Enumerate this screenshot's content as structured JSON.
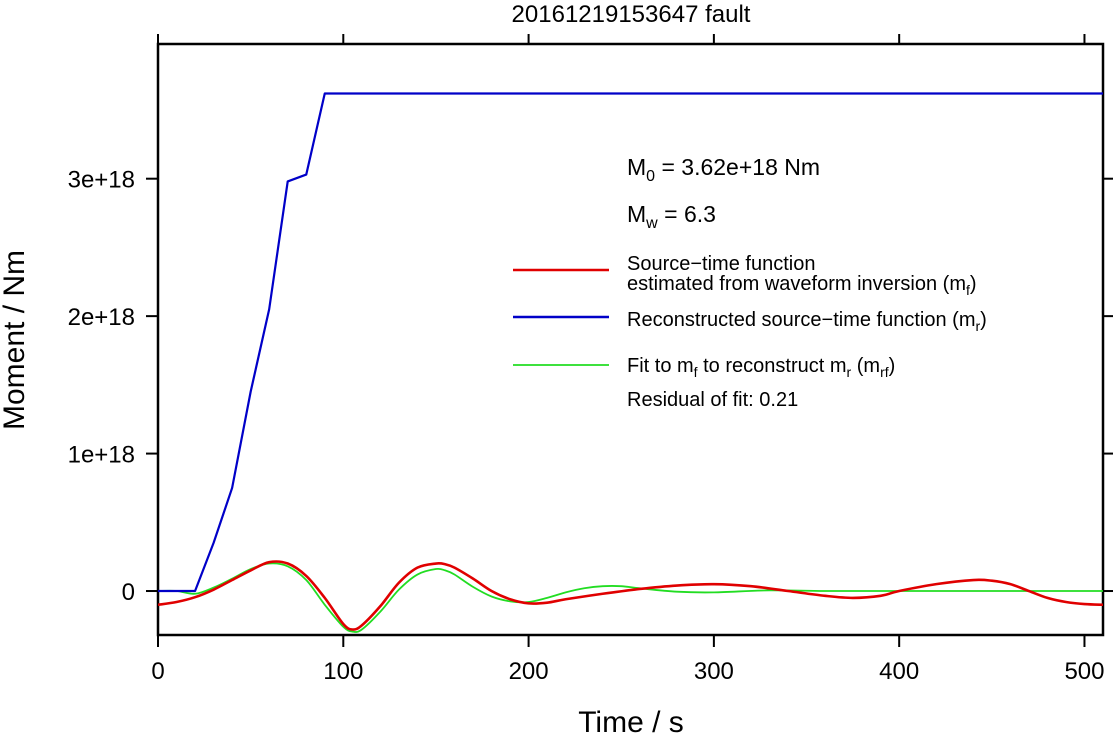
{
  "chart_data": {
    "type": "line",
    "title": "20161219153647 fault",
    "xlabel": "Time / s",
    "ylabel": "Moment / Nm",
    "xlim": [
      0,
      510
    ],
    "ylim": [
      -3.2e+17,
      3.98e+18
    ],
    "x_ticks": [
      {
        "value": 0,
        "label": "0"
      },
      {
        "value": 100,
        "label": "100"
      },
      {
        "value": 200,
        "label": "200"
      },
      {
        "value": 300,
        "label": "300"
      },
      {
        "value": 400,
        "label": "400"
      },
      {
        "value": 500,
        "label": "500"
      }
    ],
    "y_ticks": [
      {
        "value": 0,
        "label": "0"
      },
      {
        "value": 1e+18,
        "label": "1e+18"
      },
      {
        "value": 2e+18,
        "label": "2e+18"
      },
      {
        "value": 3e+18,
        "label": "3e+18"
      }
    ],
    "grid": false,
    "legend_position": "right",
    "annotations": {
      "m0": {
        "sym": "M",
        "sub": "0",
        "text": " = 3.62e+18 Nm"
      },
      "mw": {
        "sym": "M",
        "sub": "w",
        "text": " = 6.3"
      },
      "residual": "Residual of fit: 0.21"
    },
    "series": [
      {
        "name": "Source−time function estimated from waveform inversion (mf)",
        "legend": {
          "line1": "Source−time function",
          "line2_text": "estimated from waveform inversion (m",
          "line2_sub": "f",
          "line2_end": ")"
        },
        "color": "#e00000",
        "x": [
          0,
          10,
          20,
          30,
          40,
          50,
          60,
          70,
          80,
          90,
          100,
          105,
          110,
          120,
          130,
          140,
          150,
          155,
          160,
          170,
          180,
          190,
          200,
          210,
          220,
          240,
          260,
          280,
          300,
          320,
          340,
          360,
          375,
          390,
          400,
          420,
          440,
          450,
          460,
          470,
          480,
          490,
          500,
          510
        ],
        "y": [
          -1e+17,
          -8e+16,
          -4.5e+16,
          1e+16,
          8e+16,
          1.5e+17,
          2.1e+17,
          2e+17,
          1.1e+17,
          -5e+16,
          -2.4e+17,
          -2.8e+17,
          -2.5e+17,
          -1.1e+17,
          6e+16,
          1.7e+17,
          2e+17,
          1.95e+17,
          1.7e+17,
          9e+16,
          0,
          -6e+16,
          -9e+16,
          -8.5e+16,
          -6e+16,
          -2e+16,
          1.5e+16,
          4e+16,
          5e+16,
          3.5e+16,
          0,
          -3.5e+16,
          -5e+16,
          -3.5e+16,
          0,
          5e+16,
          8e+16,
          7.5e+16,
          5e+16,
          0,
          -5e+16,
          -8e+16,
          -9.5e+16,
          -1e+17
        ]
      },
      {
        "name": "Reconstructed source−time function (mr)",
        "legend": {
          "text": "Reconstructed source−time function (m",
          "sub": "r",
          "end": ")"
        },
        "color": "#0000c8",
        "x": [
          0,
          20,
          30,
          40,
          50,
          60,
          70,
          80,
          90,
          510
        ],
        "y": [
          0,
          0,
          3.5e+17,
          7.5e+17,
          1.45e+18,
          2.05e+18,
          2.98e+18,
          3.03e+18,
          3.62e+18,
          3.62e+18
        ]
      },
      {
        "name": "Fit to mf to reconstruct mr (mrf)",
        "legend": {
          "t1": "Fit to m",
          "s1": "f",
          "t2": " to reconstruct m",
          "s2": "r",
          "t3": " (m",
          "s3": "rf",
          "t4": ")"
        },
        "color": "#22dd22",
        "x": [
          0,
          10,
          20,
          30,
          40,
          50,
          60,
          70,
          80,
          90,
          100,
          105,
          110,
          120,
          130,
          140,
          150,
          155,
          160,
          170,
          180,
          190,
          200,
          210,
          220,
          230,
          240,
          250,
          260,
          280,
          300,
          330,
          360,
          400,
          450,
          510
        ],
        "y": [
          0,
          0,
          -2e+16,
          2.5e+16,
          9e+16,
          1.6e+17,
          2e+17,
          1.8e+17,
          8e+16,
          -1e+17,
          -2.6e+17,
          -2.95e+17,
          -2.8e+17,
          -1.5e+17,
          1e+16,
          1.2e+17,
          1.6e+17,
          1.5e+17,
          1.2e+17,
          3e+16,
          -4e+16,
          -7.5e+16,
          -8e+16,
          -5e+16,
          -1e+16,
          2e+16,
          3.5e+16,
          3.5e+16,
          2e+16,
          -5000000000000000.0,
          -1e+16,
          5000000000000000.0,
          0,
          0,
          0,
          0
        ]
      }
    ]
  }
}
